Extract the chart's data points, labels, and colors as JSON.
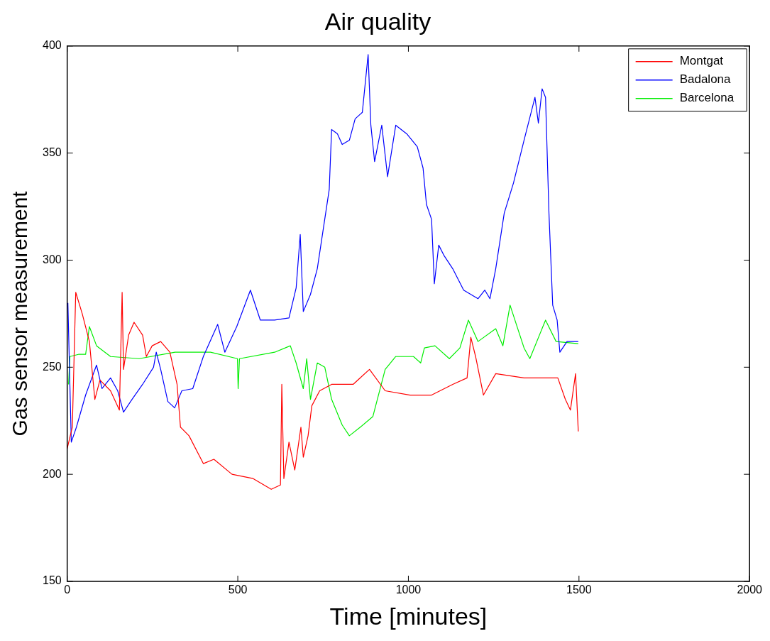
{
  "chart_data": {
    "type": "line",
    "title": "Air quality",
    "xlabel": "Time [minutes]",
    "ylabel": "Gas sensor measurement",
    "xlim": [
      0,
      2000
    ],
    "xticks": [
      0,
      500,
      1000,
      1500,
      2000
    ],
    "ylim": [
      150,
      400
    ],
    "yticks": [
      150,
      200,
      250,
      300,
      350,
      400
    ],
    "grid": false,
    "legend": "top right",
    "marker": "none",
    "line_style": "solid",
    "series": [
      {
        "name": "Montgat",
        "color": "#ff0000",
        "x": [
          0,
          15,
          25,
          44,
          65,
          81,
          96,
          127,
          153,
          161,
          165,
          180,
          196,
          221,
          232,
          249,
          274,
          301,
          322,
          332,
          357,
          399,
          430,
          483,
          545,
          598,
          625,
          629,
          635,
          650,
          667,
          685,
          692,
          706,
          717,
          740,
          775,
          838,
          886,
          932,
          1005,
          1068,
          1130,
          1172,
          1183,
          1197,
          1220,
          1256,
          1339,
          1438,
          1460,
          1475,
          1490,
          1498
        ],
        "values": [
          212,
          222,
          285,
          275,
          262,
          235,
          244,
          239,
          230,
          285,
          249,
          265,
          271,
          265,
          255,
          260,
          262,
          257,
          242,
          222,
          218,
          205,
          207,
          200,
          198,
          193,
          195,
          242,
          198,
          215,
          202,
          222,
          208,
          218,
          232,
          239,
          242,
          242,
          249,
          239,
          237,
          237,
          242,
          245,
          264,
          255,
          237,
          247,
          245,
          245,
          235,
          230,
          247,
          220
        ]
      },
      {
        "name": "Badalona",
        "color": "#0000ff",
        "x": [
          2,
          12,
          27,
          54,
          86,
          102,
          127,
          148,
          165,
          190,
          221,
          253,
          261,
          274,
          295,
          315,
          336,
          368,
          399,
          441,
          462,
          497,
          537,
          566,
          608,
          650,
          671,
          683,
          692,
          713,
          733,
          768,
          775,
          792,
          806,
          827,
          844,
          865,
          882,
          890,
          901,
          922,
          939,
          963,
          995,
          1026,
          1043,
          1053,
          1068,
          1076,
          1089,
          1105,
          1130,
          1162,
          1204,
          1224,
          1239,
          1256,
          1281,
          1308,
          1339,
          1371,
          1381,
          1392,
          1402,
          1412,
          1423,
          1436,
          1444,
          1465,
          1498
        ],
        "values": [
          280,
          215,
          222,
          237,
          251,
          240,
          245,
          239,
          229,
          235,
          242,
          250,
          257,
          249,
          234,
          231,
          239,
          240,
          255,
          270,
          257,
          269,
          286,
          272,
          272,
          273,
          287,
          312,
          276,
          284,
          296,
          333,
          361,
          359,
          354,
          356,
          366,
          369,
          396,
          363,
          346,
          363,
          339,
          363,
          359,
          353,
          343,
          326,
          319,
          289,
          307,
          302,
          296,
          286,
          282,
          286,
          282,
          296,
          322,
          336,
          356,
          376,
          364,
          380,
          376,
          322,
          279,
          272,
          257,
          262,
          262
        ]
      },
      {
        "name": "Barcelona",
        "color": "#00ee00",
        "x": [
          4,
          8,
          33,
          54,
          65,
          86,
          127,
          211,
          316,
          420,
          499,
          501,
          505,
          608,
          654,
          671,
          692,
          702,
          713,
          733,
          755,
          775,
          806,
          827,
          859,
          896,
          932,
          963,
          1015,
          1036,
          1047,
          1078,
          1120,
          1151,
          1176,
          1204,
          1256,
          1277,
          1298,
          1339,
          1356,
          1402,
          1433,
          1498
        ],
        "values": [
          242,
          255,
          256,
          256,
          269,
          260,
          255,
          254,
          257,
          257,
          254,
          240,
          254,
          257,
          260,
          252,
          240,
          254,
          235,
          252,
          250,
          235,
          223,
          218,
          222,
          227,
          249,
          255,
          255,
          252,
          259,
          260,
          254,
          259,
          272,
          262,
          268,
          260,
          279,
          259,
          254,
          272,
          262,
          261
        ]
      }
    ]
  }
}
